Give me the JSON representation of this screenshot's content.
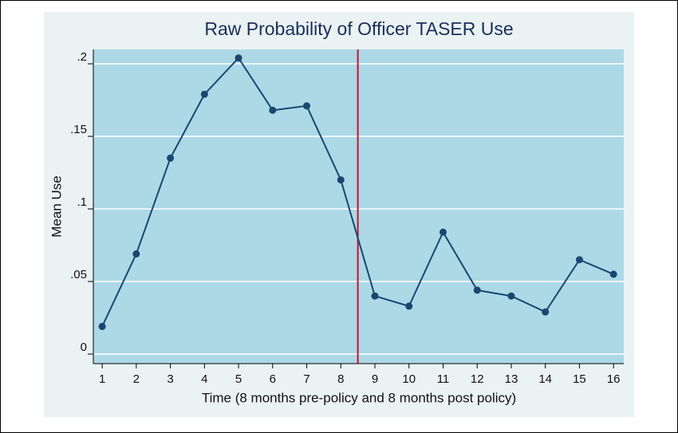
{
  "chart_data": {
    "type": "line",
    "title": "Raw Probability of Officer TASER Use",
    "x_label": "Time (8 months pre-policy and 8 months post policy)",
    "y_label": "Mean Use",
    "x": [
      1,
      2,
      3,
      4,
      5,
      6,
      7,
      8,
      9,
      10,
      11,
      12,
      13,
      14,
      15,
      16
    ],
    "series": [
      {
        "name": "Mean Use",
        "color": "#1a476f",
        "values": [
          0.019,
          0.069,
          0.135,
          0.179,
          0.204,
          0.168,
          0.171,
          0.12,
          0.04,
          0.033,
          0.084,
          0.044,
          0.04,
          0.029,
          0.065,
          0.055
        ]
      }
    ],
    "xlim": [
      0.74,
      16.3
    ],
    "ylim": [
      -0.0066,
      0.2099
    ],
    "xticks": [
      1,
      2,
      3,
      4,
      5,
      6,
      7,
      8,
      9,
      10,
      11,
      12,
      13,
      14,
      15,
      16
    ],
    "yticks": [
      0,
      {
        "value": 0.05,
        "label": ".05"
      },
      {
        "value": 0.1,
        "label": ".1"
      },
      {
        "value": 0.15,
        "label": ".15"
      },
      {
        "value": 0.2,
        "label": ".2"
      }
    ],
    "vline": {
      "x": 8.5,
      "color": "#c8102e"
    },
    "grid": true
  }
}
